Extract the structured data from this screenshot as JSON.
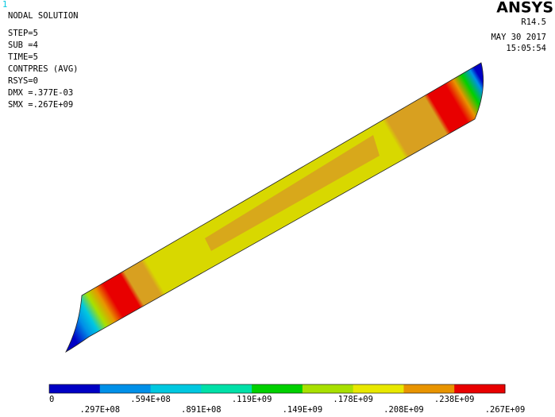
{
  "window_number": "1",
  "info_lines": [
    "NODAL SOLUTION",
    "STEP=5",
    "SUB =4",
    "TIME=5",
    "CONTPRES (AVG)",
    "RSYS=0",
    "DMX =.377E-03",
    "SMX =.267E+09"
  ],
  "brand": {
    "name": "ANSYS",
    "version": "R14.5"
  },
  "date": "MAY 30 2017",
  "time": "15:05:54",
  "legend": {
    "colors": [
      "#0000c4",
      "#0090e8",
      "#00c8e0",
      "#00e0a8",
      "#00d000",
      "#a8e000",
      "#e8e800",
      "#e89400",
      "#e80000"
    ],
    "labels": [
      "0",
      ".297E+08",
      ".594E+08",
      ".891E+08",
      ".119E+09",
      ".149E+09",
      ".178E+09",
      ".208E+09",
      ".238E+09",
      ".267E+09"
    ]
  }
}
